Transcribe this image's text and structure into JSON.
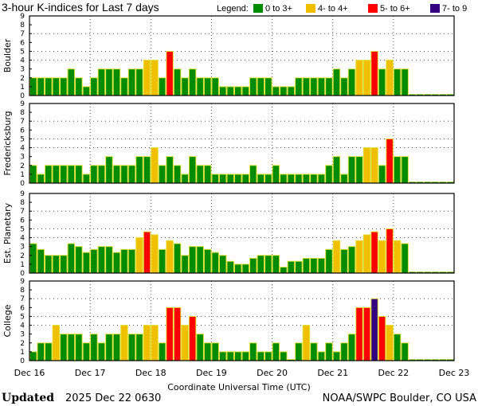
{
  "chart_data": {
    "type": "bar",
    "title": "3-hour K-indices for Last 7 days",
    "legend": {
      "label": "Legend:",
      "entries": [
        {
          "label": "0 to 3+",
          "color": "#008c00"
        },
        {
          "label": "4- to 4+",
          "color": "#f0c000"
        },
        {
          "label": "5- to 6+",
          "color": "#ff0000"
        },
        {
          "label": "7- to 9",
          "color": "#330080"
        }
      ]
    },
    "xlabel": "Coordinate Universal Time (UTC)",
    "x_tick_labels": [
      "Dec 16",
      "Dec 17",
      "Dec 18",
      "Dec 19",
      "Dec 20",
      "Dec 21",
      "Dec 22",
      "Dec 23"
    ],
    "y_tick_labels": [
      "0",
      "1",
      "2",
      "3",
      "4",
      "5",
      "6",
      "7",
      "8",
      "9"
    ],
    "ylim": [
      0,
      9
    ],
    "interval_hours": 3,
    "slots_total": 56,
    "panels": [
      {
        "ylabel": "Boulder",
        "values": [
          2,
          2,
          2,
          2,
          2,
          3,
          2,
          1,
          2,
          3,
          3,
          3,
          2,
          3,
          3,
          4,
          4,
          2,
          5,
          3,
          2,
          3,
          2,
          2,
          2,
          1,
          1,
          1,
          1,
          2,
          2,
          2,
          1,
          1,
          1,
          2,
          2,
          2,
          2,
          2,
          3,
          2,
          3,
          4,
          4,
          5,
          3,
          4,
          3,
          3
        ]
      },
      {
        "ylabel": "Fredericksburg",
        "values": [
          2,
          1,
          2,
          2,
          2,
          2,
          2,
          1,
          2,
          2,
          3,
          2,
          2,
          2,
          3,
          3,
          4,
          2,
          3,
          2,
          1,
          3,
          2,
          2,
          1,
          1,
          1,
          1,
          1,
          2,
          1,
          1,
          2,
          1,
          1,
          1,
          1,
          1,
          1,
          2,
          3,
          1,
          3,
          3,
          4,
          4,
          2,
          5,
          3,
          3
        ]
      },
      {
        "ylabel": "Est. Planetary",
        "values": [
          3.33,
          2.67,
          2,
          2,
          2,
          3.33,
          3,
          2.33,
          2.67,
          3,
          3,
          2.33,
          2.67,
          2.67,
          4,
          4.67,
          4.33,
          2.67,
          3.67,
          3.33,
          2,
          3,
          3,
          2.67,
          2.33,
          2,
          1.33,
          1,
          1,
          1.67,
          2,
          2,
          2,
          0.67,
          1.33,
          1.33,
          1.67,
          1.67,
          1.67,
          2.67,
          3.67,
          2.67,
          3,
          3.67,
          4.33,
          4.67,
          3.67,
          5,
          3.67,
          3.33
        ]
      },
      {
        "ylabel": "College",
        "values": [
          1,
          2,
          2,
          4,
          3,
          3,
          3,
          2,
          3,
          2,
          3,
          3,
          4,
          3,
          3,
          4,
          4,
          2,
          6,
          6,
          4,
          5,
          3,
          2,
          2,
          1,
          1,
          1,
          1,
          2,
          1,
          1,
          2,
          1,
          0,
          2,
          4,
          2,
          1,
          2,
          1,
          2,
          3,
          6,
          6,
          7,
          5,
          4,
          3,
          2
        ]
      }
    ]
  },
  "footer": {
    "updated_label": "Updated",
    "updated_value": "2025 Dec 22 0630",
    "source": "NOAA/SWPC Boulder, CO USA"
  }
}
